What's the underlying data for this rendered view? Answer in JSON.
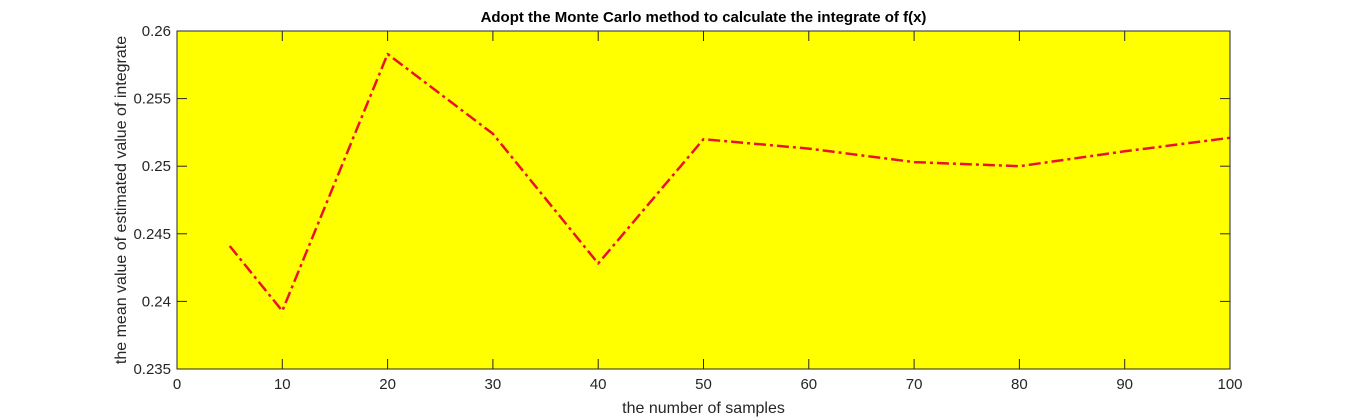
{
  "chart_data": {
    "type": "line",
    "title": "Adopt the Monte Carlo method to calculate the integrate of f(x)",
    "xlabel": "the number of samples",
    "ylabel": "the mean value of estimated value of integrate",
    "xlim": [
      0,
      100
    ],
    "ylim": [
      0.235,
      0.26
    ],
    "xticks": [
      0,
      10,
      20,
      30,
      40,
      50,
      60,
      70,
      80,
      90,
      100
    ],
    "xtick_labels": [
      "0",
      "10",
      "20",
      "30",
      "40",
      "50",
      "60",
      "70",
      "80",
      "90",
      "100"
    ],
    "yticks": [
      0.235,
      0.24,
      0.245,
      0.25,
      0.255,
      0.26
    ],
    "ytick_labels": [
      "0.235",
      "0.24",
      "0.245",
      "0.25",
      "0.255",
      "0.26"
    ],
    "grid": false,
    "legend": "none",
    "background_color": "#ffff00",
    "series": [
      {
        "line_color": "#e8132b",
        "line_style": "dash-dot",
        "x": [
          5,
          10,
          20,
          30,
          40,
          50,
          60,
          70,
          80,
          90,
          100
        ],
        "y": [
          0.2441,
          0.2393,
          0.2583,
          0.2524,
          0.2428,
          0.252,
          0.2513,
          0.2503,
          0.25,
          0.2511,
          0.2521
        ]
      }
    ]
  }
}
